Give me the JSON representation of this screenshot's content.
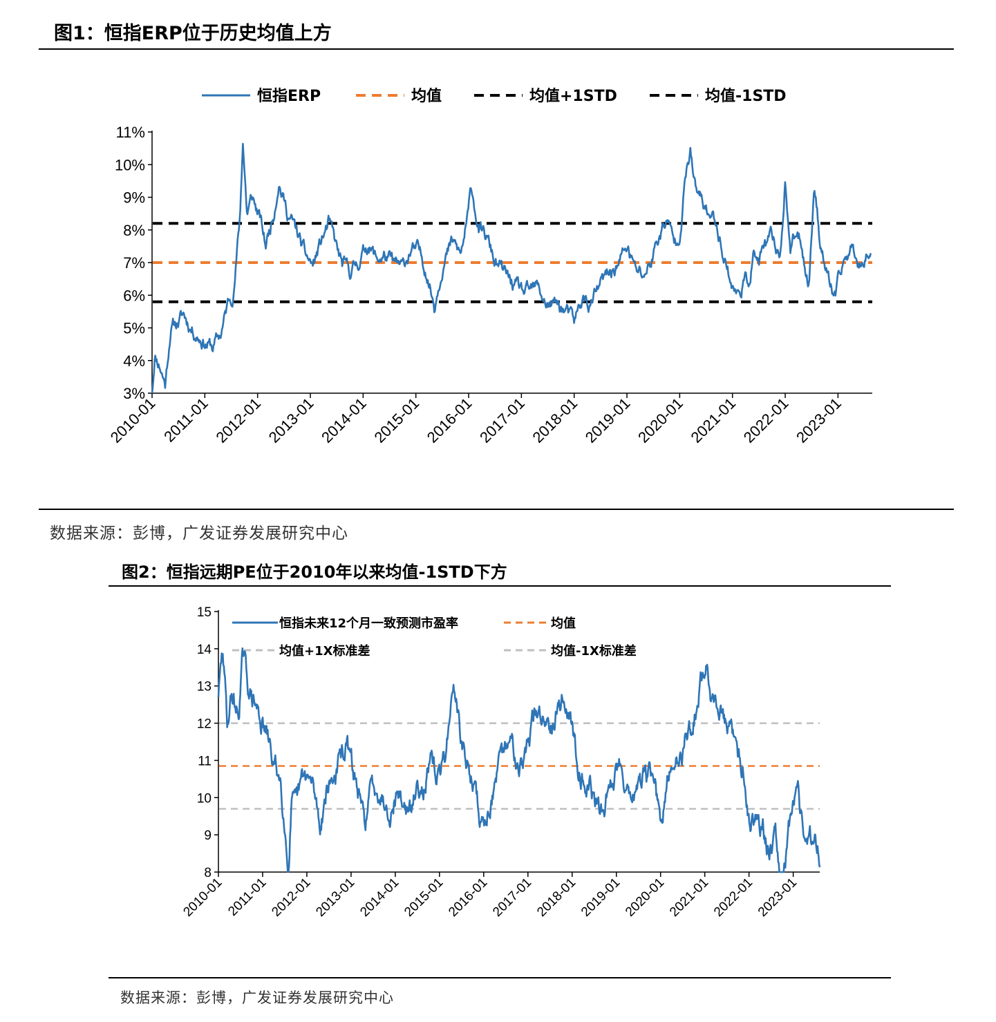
{
  "figure1": {
    "title": "图1：恒指ERP位于历史均值上方",
    "source": "数据来源：彭博，广发证券发展研究中心"
  },
  "figure2": {
    "title": "图2：恒指远期PE位于2010年以来均值-1STD下方",
    "source": "数据来源：彭博，广发证券发展研究中心"
  },
  "colors": {
    "series": "#2e75b6",
    "mean": "#ed7d31",
    "std_black": "#000000",
    "std_grey": "#bfbfbf"
  },
  "chart_data": [
    {
      "type": "line",
      "title": "恒指ERP位于历史均值上方",
      "y_unit": "%",
      "ylim": [
        3,
        11
      ],
      "yticks": [
        "3%",
        "4%",
        "5%",
        "6%",
        "7%",
        "8%",
        "9%",
        "10%",
        "11%"
      ],
      "xlim": [
        2010.0,
        2023.65
      ],
      "xticks": [
        "2010-01",
        "2011-01",
        "2012-01",
        "2013-01",
        "2014-01",
        "2015-01",
        "2016-01",
        "2017-01",
        "2018-01",
        "2019-01",
        "2020-01",
        "2021-01",
        "2022-01",
        "2023-01"
      ],
      "legend": {
        "series": "恒指ERP",
        "mean": "均值",
        "plus_std": "均值+1STD",
        "minus_std": "均值-1STD"
      },
      "reference_lines": {
        "mean": 7.0,
        "plus_std": 8.2,
        "minus_std": 5.8
      },
      "series_anchors": {
        "x": [
          2010.0,
          2010.05,
          2010.15,
          2010.25,
          2010.35,
          2010.5,
          2010.6,
          2010.75,
          2011.0,
          2011.15,
          2011.3,
          2011.45,
          2011.55,
          2011.62,
          2011.67,
          2011.72,
          2011.8,
          2011.9,
          2012.05,
          2012.15,
          2012.3,
          2012.4,
          2012.55,
          2012.75,
          2012.9,
          2013.05,
          2013.2,
          2013.35,
          2013.5,
          2013.6,
          2013.75,
          2013.9,
          2014.1,
          2014.25,
          2014.4,
          2014.6,
          2014.75,
          2014.9,
          2015.05,
          2015.2,
          2015.3,
          2015.35,
          2015.5,
          2015.7,
          2015.85,
          2016.0,
          2016.05,
          2016.2,
          2016.35,
          2016.5,
          2016.7,
          2016.9,
          2017.1,
          2017.3,
          2017.5,
          2017.7,
          2017.85,
          2018.0,
          2018.15,
          2018.3,
          2018.5,
          2018.7,
          2018.85,
          2019.0,
          2019.15,
          2019.3,
          2019.45,
          2019.6,
          2019.75,
          2019.9,
          2020.0,
          2020.1,
          2020.2,
          2020.3,
          2020.4,
          2020.55,
          2020.7,
          2020.85,
          2021.0,
          2021.1,
          2021.2,
          2021.3,
          2021.4,
          2021.5,
          2021.6,
          2021.75,
          2021.9,
          2022.0,
          2022.1,
          2022.2,
          2022.3,
          2022.45,
          2022.55,
          2022.65,
          2022.75,
          2022.85,
          2022.95,
          2023.05,
          2023.15,
          2023.25,
          2023.35,
          2023.45,
          2023.55,
          2023.62
        ],
        "y": [
          3.0,
          4.2,
          3.9,
          3.3,
          5.0,
          5.2,
          5.4,
          5.0,
          4.6,
          4.4,
          4.8,
          5.8,
          6.2,
          7.5,
          8.5,
          10.8,
          8.5,
          9.0,
          8.3,
          7.5,
          8.5,
          9.6,
          8.6,
          7.9,
          7.2,
          6.9,
          7.6,
          8.2,
          7.4,
          6.9,
          6.7,
          7.0,
          7.6,
          7.1,
          7.2,
          6.9,
          6.8,
          7.4,
          7.3,
          6.8,
          6.1,
          5.7,
          7.0,
          7.6,
          7.2,
          8.5,
          9.3,
          8.0,
          7.7,
          7.0,
          6.6,
          6.2,
          6.0,
          6.2,
          5.7,
          5.7,
          5.5,
          5.1,
          5.9,
          5.7,
          6.3,
          6.7,
          7.0,
          7.5,
          6.8,
          6.6,
          7.0,
          7.8,
          8.3,
          7.6,
          8.0,
          9.5,
          10.4,
          9.2,
          8.9,
          8.5,
          8.2,
          7.2,
          6.3,
          6.0,
          6.4,
          6.4,
          7.3,
          7.0,
          7.4,
          7.7,
          7.2,
          9.5,
          7.4,
          7.8,
          7.7,
          6.3,
          9.5,
          7.9,
          7.0,
          6.3,
          5.9,
          6.6,
          7.2,
          7.4,
          7.3,
          6.9,
          7.5,
          7.3
        ]
      }
    },
    {
      "type": "line",
      "title": "恒指远期PE位于2010年以来均值-1STD下方",
      "ylim": [
        8,
        15
      ],
      "yticks": [
        "8",
        "9",
        "10",
        "11",
        "12",
        "13",
        "14",
        "15"
      ],
      "xlim": [
        2010.0,
        2023.6
      ],
      "xticks": [
        "2010-01",
        "2011-01",
        "2012-01",
        "2013-01",
        "2014-01",
        "2015-01",
        "2016-01",
        "2017-01",
        "2018-01",
        "2019-01",
        "2020-01",
        "2021-01",
        "2022-01",
        "2023-01"
      ],
      "legend": {
        "series": "恒指未来12个月一致预测市盈率",
        "mean": "均值",
        "plus_std": "均值+1X标准差",
        "minus_std": "均值-1X标准差"
      },
      "reference_lines": {
        "mean": 10.85,
        "plus_std": 12.0,
        "minus_std": 9.7
      },
      "series_anchors": {
        "x": [
          2010.0,
          2010.1,
          2010.2,
          2010.3,
          2010.45,
          2010.55,
          2010.7,
          2010.9,
          2011.1,
          2011.25,
          2011.4,
          2011.5,
          2011.58,
          2011.65,
          2011.75,
          2011.9,
          2012.0,
          2012.15,
          2012.3,
          2012.45,
          2012.6,
          2012.75,
          2012.9,
          2013.0,
          2013.15,
          2013.3,
          2013.45,
          2013.6,
          2013.75,
          2013.9,
          2014.05,
          2014.2,
          2014.35,
          2014.5,
          2014.65,
          2014.8,
          2015.0,
          2015.15,
          2015.25,
          2015.35,
          2015.45,
          2015.6,
          2015.75,
          2015.9,
          2016.0,
          2016.15,
          2016.3,
          2016.45,
          2016.55,
          2016.7,
          2016.9,
          2017.1,
          2017.3,
          2017.5,
          2017.65,
          2017.8,
          2017.95,
          2018.05,
          2018.2,
          2018.35,
          2018.5,
          2018.65,
          2018.8,
          2018.95,
          2019.1,
          2019.25,
          2019.4,
          2019.55,
          2019.7,
          2019.85,
          2020.0,
          2020.15,
          2020.25,
          2020.35,
          2020.5,
          2020.65,
          2020.8,
          2020.95,
          2021.05,
          2021.15,
          2021.3,
          2021.45,
          2021.6,
          2021.75,
          2021.9,
          2022.0,
          2022.1,
          2022.2,
          2022.3,
          2022.45,
          2022.6,
          2022.7,
          2022.8,
          2022.9,
          2023.0,
          2023.1,
          2023.2,
          2023.3,
          2023.4,
          2023.5,
          2023.6
        ],
        "y": [
          12.8,
          13.9,
          12.0,
          12.8,
          12.2,
          13.8,
          12.8,
          12.3,
          11.6,
          10.9,
          10.5,
          9.5,
          8.0,
          9.8,
          9.6,
          10.4,
          10.5,
          10.2,
          9.3,
          10.3,
          10.5,
          11.0,
          11.4,
          10.9,
          10.2,
          9.2,
          10.2,
          10.4,
          10.0,
          9.8,
          10.2,
          9.8,
          9.5,
          10.3,
          10.5,
          10.8,
          10.5,
          11.3,
          12.5,
          13.0,
          11.8,
          10.9,
          10.5,
          9.5,
          9.2,
          10.0,
          10.5,
          11.0,
          11.5,
          11.3,
          11.0,
          12.0,
          12.2,
          12.1,
          12.5,
          12.7,
          12.3,
          11.4,
          10.8,
          10.4,
          10.0,
          9.5,
          10.2,
          10.6,
          11.0,
          10.3,
          10.2,
          10.4,
          10.5,
          10.7,
          9.0,
          10.3,
          10.7,
          11.0,
          11.3,
          11.8,
          12.4,
          13.3,
          13.5,
          12.8,
          12.5,
          12.0,
          11.7,
          11.0,
          10.8,
          9.5,
          9.4,
          9.6,
          9.4,
          8.5,
          9.3,
          8.0,
          8.3,
          9.2,
          9.9,
          10.5,
          9.3,
          9.0,
          8.8,
          9.1,
          8.6
        ]
      }
    }
  ]
}
